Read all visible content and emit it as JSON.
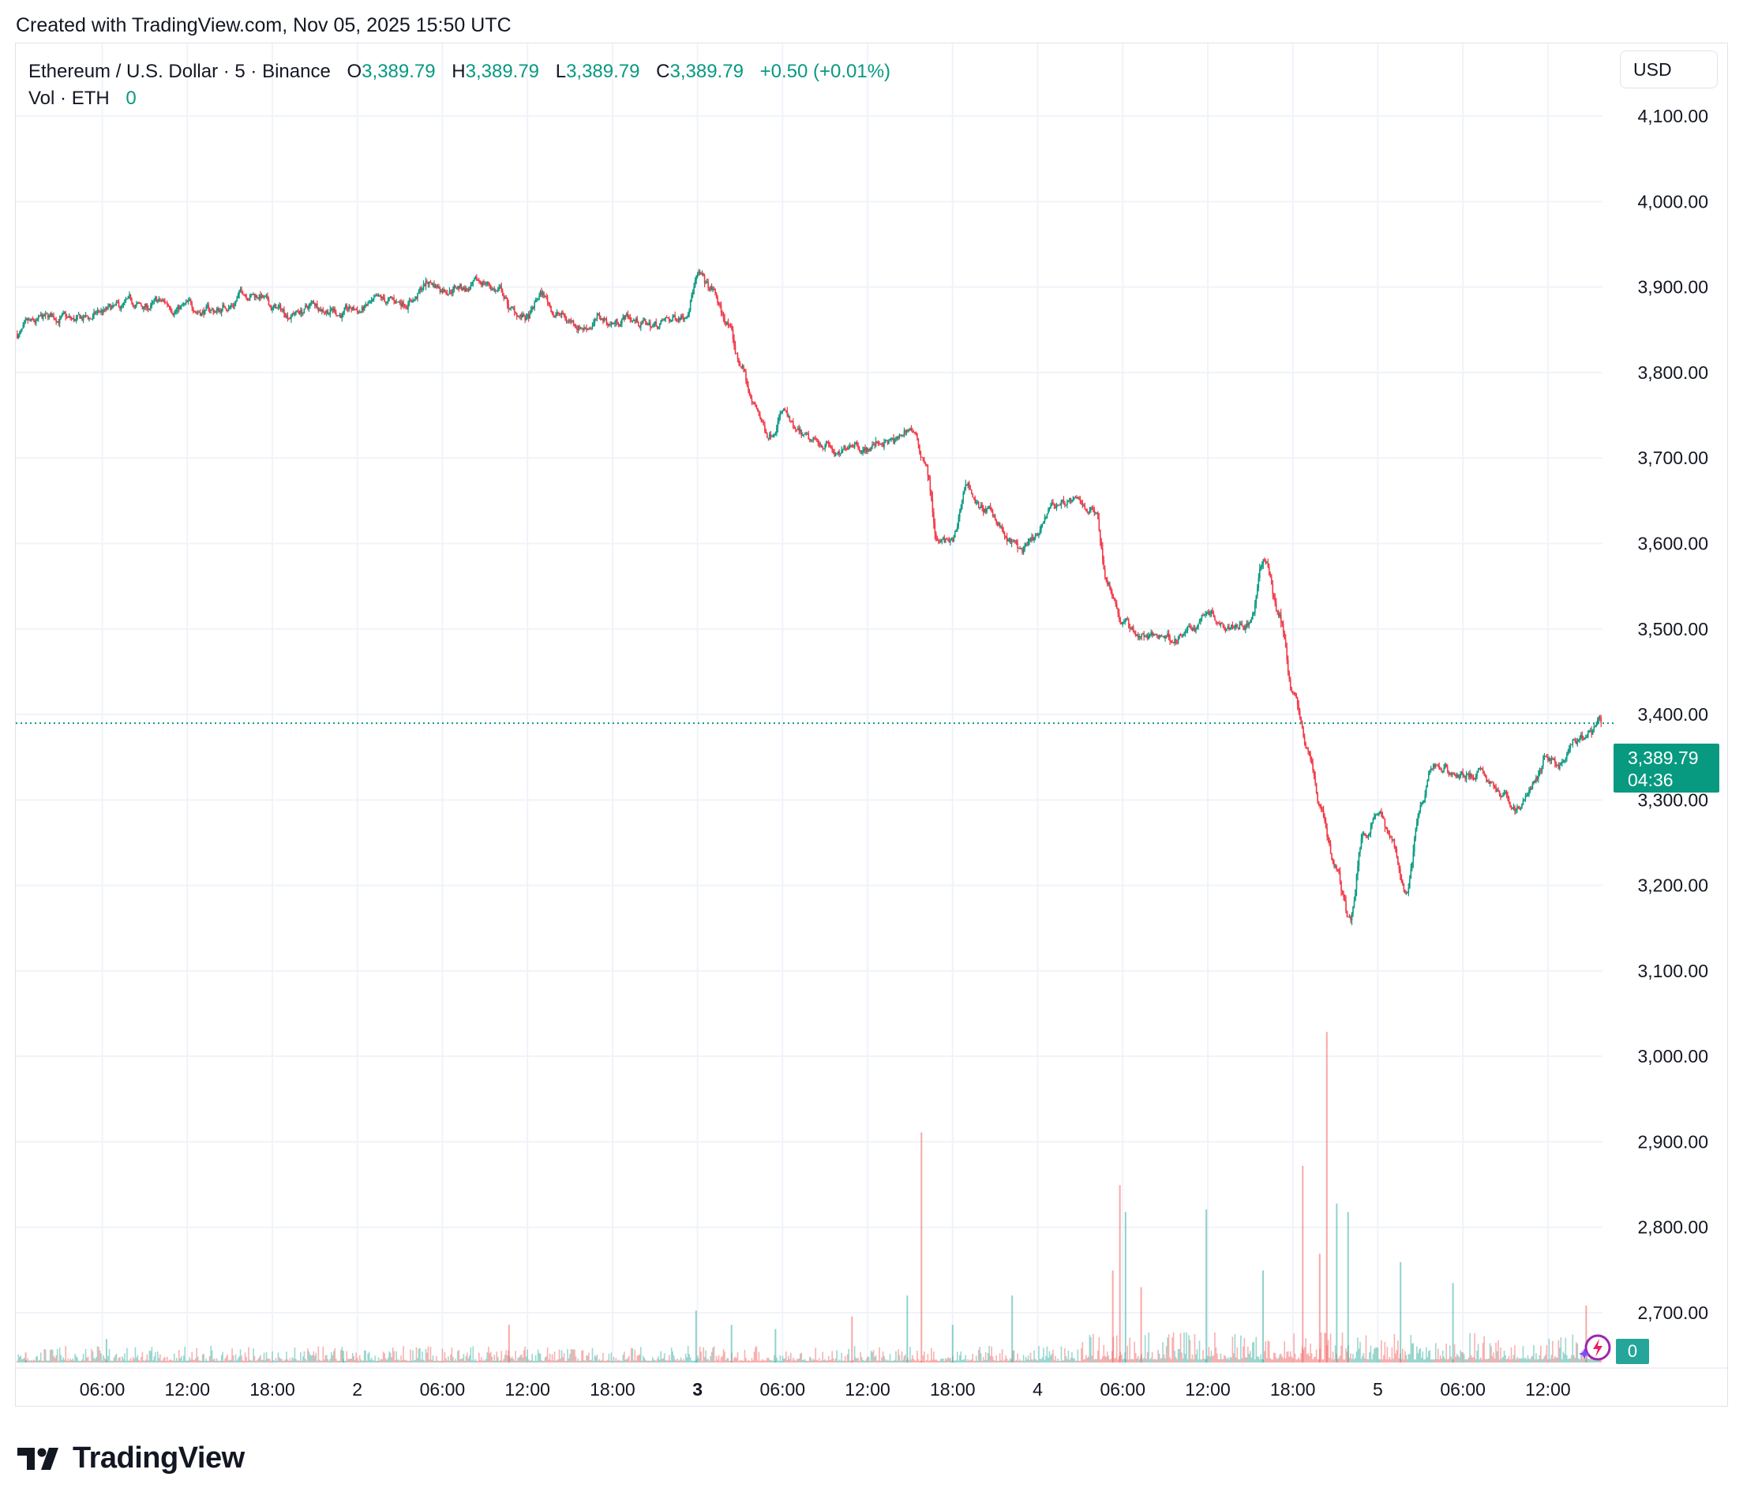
{
  "header_note": "Created with TradingView.com, Nov 05, 2025 15:50 UTC",
  "legend": {
    "symbol": "Ethereum / U.S. Dollar · 5 · Binance",
    "open_label": "O",
    "open": "3,389.79",
    "high_label": "H",
    "high": "3,389.79",
    "low_label": "L",
    "low": "3,389.79",
    "close_label": "C",
    "close": "3,389.79",
    "change": "+0.50 (+0.01%)",
    "volume_label": "Vol · ETH",
    "volume": "0"
  },
  "currency_button": "USD",
  "price_tag": {
    "price": "3,389.79",
    "countdown": "04:36"
  },
  "volume_tag": "0",
  "brand": "TradingView",
  "colors": {
    "up": "#089981",
    "down": "#f23645",
    "vol_up": "#26a69a",
    "vol_down": "#ef5350",
    "grid": "#f0f3fa",
    "accent": "#089981"
  },
  "chart_data": {
    "type": "candlestick",
    "symbol": "ETHUSD",
    "exchange": "Binance",
    "interval": "5",
    "y_axis": {
      "ticks": [
        "2,700.00",
        "2,800.00",
        "2,900.00",
        "3,000.00",
        "3,100.00",
        "3,200.00",
        "3,300.00",
        "3,400.00",
        "3,500.00",
        "3,600.00",
        "3,700.00",
        "3,800.00",
        "3,900.00",
        "4,000.00",
        "4,100.00"
      ],
      "ylim": [
        2640,
        4185
      ]
    },
    "x_axis": {
      "ticks": [
        {
          "label": "06:00",
          "hour": 6,
          "bold": false
        },
        {
          "label": "12:00",
          "hour": 12,
          "bold": false
        },
        {
          "label": "18:00",
          "hour": 18,
          "bold": false
        },
        {
          "label": "2",
          "hour": 24,
          "bold": false
        },
        {
          "label": "06:00",
          "hour": 30,
          "bold": false
        },
        {
          "label": "12:00",
          "hour": 36,
          "bold": false
        },
        {
          "label": "18:00",
          "hour": 42,
          "bold": false
        },
        {
          "label": "3",
          "hour": 48,
          "bold": true
        },
        {
          "label": "06:00",
          "hour": 54,
          "bold": false
        },
        {
          "label": "12:00",
          "hour": 60,
          "bold": false
        },
        {
          "label": "18:00",
          "hour": 66,
          "bold": false
        },
        {
          "label": "4",
          "hour": 72,
          "bold": false
        },
        {
          "label": "06:00",
          "hour": 78,
          "bold": false
        },
        {
          "label": "12:00",
          "hour": 84,
          "bold": false
        },
        {
          "label": "18:00",
          "hour": 90,
          "bold": false
        },
        {
          "label": "5",
          "hour": 96,
          "bold": false
        },
        {
          "label": "06:00",
          "hour": 102,
          "bold": false
        },
        {
          "label": "12:00",
          "hour": 108,
          "bold": false
        }
      ],
      "range_hours": [
        -0.1,
        111.85
      ]
    },
    "last_price": 3389.79,
    "price_path_hourly": [
      [
        0,
        3845
      ],
      [
        1,
        3852
      ],
      [
        2,
        3860
      ],
      [
        3,
        3865
      ],
      [
        4,
        3858
      ],
      [
        5,
        3862
      ],
      [
        6,
        3870
      ],
      [
        7,
        3872
      ],
      [
        8,
        3878
      ],
      [
        9,
        3875
      ],
      [
        10,
        3880
      ],
      [
        11,
        3878
      ],
      [
        12,
        3876
      ],
      [
        13,
        3874
      ],
      [
        14,
        3872
      ],
      [
        15,
        3880
      ],
      [
        16,
        3895
      ],
      [
        17,
        3892
      ],
      [
        18,
        3875
      ],
      [
        19,
        3870
      ],
      [
        20,
        3872
      ],
      [
        21,
        3880
      ],
      [
        22,
        3876
      ],
      [
        23,
        3870
      ],
      [
        24,
        3872
      ],
      [
        25,
        3878
      ],
      [
        26,
        3880
      ],
      [
        27,
        3882
      ],
      [
        28,
        3888
      ],
      [
        29,
        3905
      ],
      [
        30,
        3900
      ],
      [
        31,
        3902
      ],
      [
        32,
        3898
      ],
      [
        33,
        3905
      ],
      [
        34,
        3895
      ],
      [
        35,
        3870
      ],
      [
        36,
        3862
      ],
      [
        37,
        3890
      ],
      [
        38,
        3870
      ],
      [
        39,
        3860
      ],
      [
        40,
        3855
      ],
      [
        41,
        3862
      ],
      [
        42,
        3858
      ],
      [
        43,
        3866
      ],
      [
        44,
        3858
      ],
      [
        45,
        3855
      ],
      [
        46,
        3860
      ],
      [
        47,
        3870
      ],
      [
        48,
        3912
      ],
      [
        49,
        3895
      ],
      [
        50,
        3860
      ],
      [
        51,
        3810
      ],
      [
        52,
        3760
      ],
      [
        53,
        3730
      ],
      [
        54,
        3755
      ],
      [
        55,
        3725
      ],
      [
        56,
        3715
      ],
      [
        57,
        3718
      ],
      [
        58,
        3700
      ],
      [
        59,
        3722
      ],
      [
        60,
        3712
      ],
      [
        61,
        3720
      ],
      [
        62,
        3718
      ],
      [
        63,
        3735
      ],
      [
        64,
        3700
      ],
      [
        65,
        3600
      ],
      [
        66,
        3600
      ],
      [
        67,
        3670
      ],
      [
        68,
        3640
      ],
      [
        69,
        3630
      ],
      [
        70,
        3600
      ],
      [
        71,
        3590
      ],
      [
        72,
        3605
      ],
      [
        73,
        3645
      ],
      [
        74,
        3650
      ],
      [
        75,
        3645
      ],
      [
        76,
        3640
      ],
      [
        77,
        3555
      ],
      [
        78,
        3510
      ],
      [
        79,
        3495
      ],
      [
        80,
        3490
      ],
      [
        81,
        3492
      ],
      [
        82,
        3490
      ],
      [
        83,
        3500
      ],
      [
        84,
        3525
      ],
      [
        85,
        3510
      ],
      [
        86,
        3510
      ],
      [
        87,
        3508
      ],
      [
        88,
        3580
      ],
      [
        89,
        3520
      ],
      [
        90,
        3430
      ],
      [
        91,
        3360
      ],
      [
        92,
        3290
      ],
      [
        93,
        3220
      ],
      [
        94,
        3160
      ],
      [
        95,
        3260
      ],
      [
        96,
        3290
      ],
      [
        97,
        3250
      ],
      [
        98,
        3195
      ],
      [
        99,
        3290
      ],
      [
        100,
        3340
      ],
      [
        101,
        3335
      ],
      [
        102,
        3330
      ],
      [
        103,
        3330
      ],
      [
        104,
        3320
      ],
      [
        105,
        3300
      ],
      [
        106,
        3290
      ],
      [
        107,
        3320
      ],
      [
        108,
        3350
      ],
      [
        109,
        3340
      ],
      [
        110,
        3365
      ],
      [
        111,
        3375
      ],
      [
        111.75,
        3389.79
      ]
    ],
    "volume_spikes_hourly": [
      [
        0.6,
        12,
        "d"
      ],
      [
        6.3,
        28,
        "u"
      ],
      [
        23.0,
        14,
        "u"
      ],
      [
        34.7,
        45,
        "d"
      ],
      [
        47.9,
        62,
        "u"
      ],
      [
        50.4,
        45,
        "u"
      ],
      [
        53.5,
        40,
        "u"
      ],
      [
        58.9,
        55,
        "d"
      ],
      [
        62.8,
        80,
        "u"
      ],
      [
        63.8,
        275,
        "d"
      ],
      [
        66.0,
        45,
        "u"
      ],
      [
        70.2,
        80,
        "u"
      ],
      [
        77.3,
        110,
        "d"
      ],
      [
        77.8,
        212,
        "d"
      ],
      [
        78.2,
        180,
        "u"
      ],
      [
        79.3,
        90,
        "d"
      ],
      [
        83.9,
        183,
        "u"
      ],
      [
        87.9,
        110,
        "u"
      ],
      [
        90.7,
        235,
        "d"
      ],
      [
        91.9,
        130,
        "d"
      ],
      [
        92.4,
        395,
        "d"
      ],
      [
        93.1,
        190,
        "u"
      ],
      [
        93.9,
        180,
        "u"
      ],
      [
        97.6,
        120,
        "u"
      ],
      [
        101.3,
        95,
        "u"
      ],
      [
        110.7,
        68,
        "d"
      ]
    ]
  }
}
